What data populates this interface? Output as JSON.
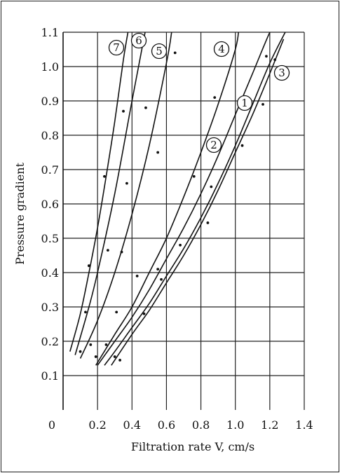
{
  "chart_data": {
    "type": "line",
    "title": "",
    "xlabel": "Filtration rate V, cm/s",
    "ylabel": "Pressure gradient",
    "xlim": [
      0,
      1.4
    ],
    "ylim": [
      0,
      1.1
    ],
    "x_ticks": [
      "0",
      "0.2",
      "0.4",
      "0.6",
      "0.8",
      "1.0",
      "1.2",
      "1.4"
    ],
    "y_ticks": [
      "0.1",
      "0.2",
      "0.3",
      "0.4",
      "0.5",
      "0.6",
      "0.7",
      "0.8",
      "0.9",
      "1.0",
      "1.1"
    ],
    "grid": true,
    "series": [
      {
        "name": "1",
        "x": [
          0.24,
          0.3,
          0.4,
          0.5,
          0.6,
          0.7,
          0.8,
          0.9,
          1.0,
          1.1,
          1.2,
          1.3
        ],
        "y": [
          0.13,
          0.17,
          0.24,
          0.31,
          0.39,
          0.47,
          0.56,
          0.66,
          0.77,
          0.89,
          1.01,
          1.11
        ]
      },
      {
        "name": "2",
        "x": [
          0.2,
          0.3,
          0.4,
          0.5,
          0.6,
          0.7,
          0.8,
          0.9,
          1.0,
          1.1,
          1.2,
          1.25
        ],
        "y": [
          0.13,
          0.2,
          0.27,
          0.35,
          0.44,
          0.53,
          0.63,
          0.74,
          0.86,
          0.98,
          1.1,
          1.14
        ]
      },
      {
        "name": "3",
        "x": [
          0.28,
          0.4,
          0.5,
          0.6,
          0.7,
          0.8,
          0.9,
          1.0,
          1.1,
          1.2,
          1.28
        ],
        "y": [
          0.13,
          0.22,
          0.29,
          0.37,
          0.45,
          0.54,
          0.64,
          0.75,
          0.86,
          0.98,
          1.08
        ]
      },
      {
        "name": "4",
        "x": [
          0.19,
          0.3,
          0.4,
          0.5,
          0.6,
          0.7,
          0.8,
          0.9,
          1.0,
          1.02
        ],
        "y": [
          0.13,
          0.22,
          0.3,
          0.4,
          0.5,
          0.62,
          0.75,
          0.89,
          1.05,
          1.11
        ]
      },
      {
        "name": "5",
        "x": [
          0.1,
          0.2,
          0.3,
          0.4,
          0.5,
          0.6,
          0.63
        ],
        "y": [
          0.15,
          0.26,
          0.4,
          0.57,
          0.77,
          1.01,
          1.1
        ]
      },
      {
        "name": "6",
        "x": [
          0.07,
          0.15,
          0.2,
          0.3,
          0.4,
          0.48
        ],
        "y": [
          0.16,
          0.3,
          0.4,
          0.63,
          0.9,
          1.11
        ]
      },
      {
        "name": "7",
        "x": [
          0.04,
          0.1,
          0.15,
          0.2,
          0.25,
          0.3,
          0.35,
          0.38
        ],
        "y": [
          0.17,
          0.28,
          0.4,
          0.53,
          0.68,
          0.84,
          1.02,
          1.11
        ]
      }
    ],
    "points": [
      [
        0.13,
        0.285
      ],
      [
        0.15,
        0.42
      ],
      [
        0.1,
        0.17
      ],
      [
        0.16,
        0.19
      ],
      [
        0.19,
        0.155
      ],
      [
        0.24,
        0.68
      ],
      [
        0.26,
        0.465
      ],
      [
        0.25,
        0.19
      ],
      [
        0.3,
        0.155
      ],
      [
        0.33,
        0.145
      ],
      [
        0.35,
        0.87
      ],
      [
        0.34,
        0.46
      ],
      [
        0.37,
        0.66
      ],
      [
        0.31,
        0.285
      ],
      [
        0.43,
        0.39
      ],
      [
        0.47,
        0.28
      ],
      [
        0.48,
        0.88
      ],
      [
        0.55,
        0.75
      ],
      [
        0.55,
        0.41
      ],
      [
        0.57,
        0.38
      ],
      [
        0.65,
        1.04
      ],
      [
        0.68,
        0.48
      ],
      [
        0.76,
        0.68
      ],
      [
        0.84,
        0.545
      ],
      [
        0.86,
        0.65
      ],
      [
        0.88,
        0.91
      ],
      [
        1.04,
        0.77
      ],
      [
        1.16,
        0.89
      ],
      [
        1.18,
        1.03
      ],
      [
        1.23,
        1.02
      ]
    ]
  }
}
